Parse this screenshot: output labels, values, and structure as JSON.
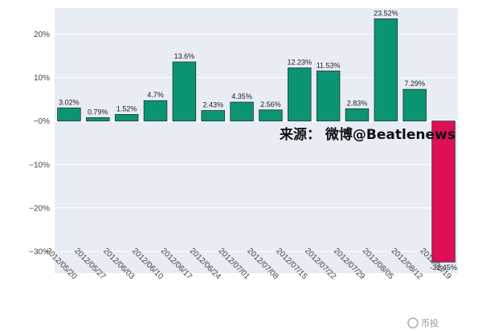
{
  "chart_data": {
    "type": "bar",
    "title": "",
    "xlabel": "",
    "ylabel": "",
    "categories": [
      "2012/05/20",
      "2012/05/27",
      "2012/06/03",
      "2012/06/10",
      "2012/06/17",
      "2012/06/24",
      "2012/07/01",
      "2012/07/08",
      "2012/07/15",
      "2012/07/22",
      "2012/07/29",
      "2012/08/05",
      "2012/08/12",
      "2012/08/19"
    ],
    "values": [
      3.02,
      0.79,
      1.52,
      4.7,
      13.6,
      2.43,
      4.35,
      2.56,
      12.23,
      11.53,
      2.83,
      23.52,
      7.29,
      -32.45
    ],
    "value_labels": [
      "3.02%",
      "0.79%",
      "1.52%",
      "4.7%",
      "13.6%",
      "2.43%",
      "4.35%",
      "2.56%",
      "12.23%",
      "11.53%",
      "2.83%",
      "23.52%",
      "7.29%",
      "-32.45%"
    ],
    "ylim": [
      -35,
      26
    ],
    "yticks": [
      20,
      10,
      0,
      -10,
      -20,
      -30
    ],
    "ytick_labels": [
      "20%",
      "10%",
      "−0%",
      "−10%",
      "−20%",
      "−30%"
    ],
    "grid": true,
    "colors": {
      "positive": "#0a9474",
      "negative": "#dc0f57",
      "plot_background": "#e8ecf5",
      "grid": "#ffffff"
    },
    "annotation": "来源：  微博@Beatlenews"
  },
  "watermark": {
    "icon": "wechat-icon",
    "text": "币投"
  }
}
